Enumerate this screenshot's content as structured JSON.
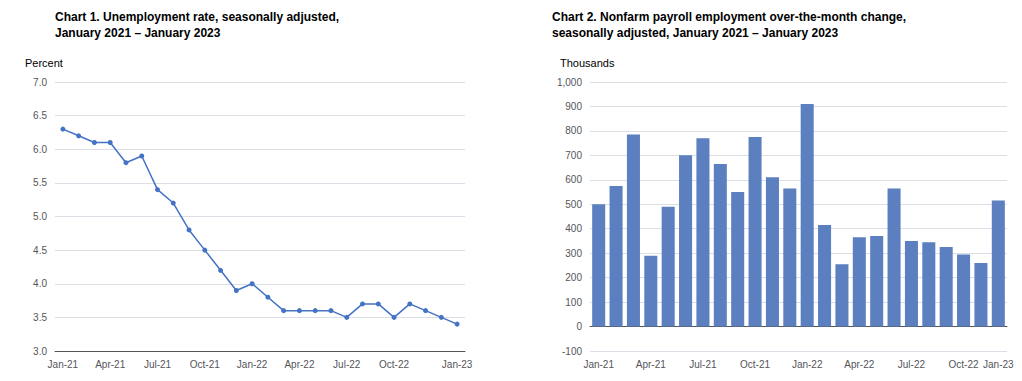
{
  "chart_data": [
    {
      "type": "line",
      "title": "Chart 1. Unemployment rate, seasonally adjusted,",
      "subtitle": "January 2021 – January 2023",
      "ylabel": "Percent",
      "categories": [
        "Jan-21",
        null,
        null,
        "Apr-21",
        null,
        null,
        "Jul-21",
        null,
        null,
        "Oct-21",
        null,
        null,
        "Jan-22",
        null,
        null,
        "Apr-22",
        null,
        null,
        "Jul-22",
        null,
        null,
        "Oct-22",
        null,
        null,
        null,
        "Jan-23"
      ],
      "values": [
        6.3,
        6.2,
        6.1,
        6.1,
        5.8,
        5.9,
        5.4,
        5.2,
        4.8,
        4.5,
        4.2,
        3.9,
        4.0,
        3.8,
        3.6,
        3.6,
        3.6,
        3.6,
        3.5,
        3.7,
        3.7,
        3.5,
        3.7,
        3.6,
        3.5,
        3.4
      ],
      "color": "#4472C4",
      "marker": "circle",
      "ylim": [
        3.0,
        7.0
      ],
      "yticks": [
        {
          "value": 3.0,
          "label": "3.0"
        },
        3.5,
        {
          "value": 4.0,
          "label": "4.0"
        },
        4.5,
        {
          "value": 5.0,
          "label": "5.0"
        },
        5.5,
        {
          "value": 6.0,
          "label": "6.0"
        },
        6.5,
        {
          "value": 7.0,
          "label": "7.0"
        }
      ],
      "grid": true
    },
    {
      "type": "bar",
      "title": "Chart 2. Nonfarm payroll employment over-the-month change,",
      "subtitle": "seasonally adjusted, January 2021 – January 2023",
      "ylabel": "Thousands",
      "categories": [
        "Jan-21",
        null,
        null,
        "Apr-21",
        null,
        null,
        "Jul-21",
        null,
        null,
        "Oct-21",
        null,
        null,
        "Jan-22",
        null,
        null,
        "Apr-22",
        null,
        null,
        "Jul-22",
        null,
        null,
        "Oct-22",
        null,
        "Jan-23"
      ],
      "values": [
        500,
        575,
        785,
        290,
        490,
        700,
        770,
        665,
        550,
        775,
        610,
        565,
        910,
        415,
        255,
        365,
        370,
        565,
        350,
        345,
        325,
        295,
        260,
        515
      ],
      "color": "#5B7FBF",
      "ylim": [
        -100,
        1000
      ],
      "yticks": [
        -100,
        0,
        100,
        200,
        300,
        400,
        500,
        600,
        700,
        800,
        900,
        {
          "value": 1000,
          "label": "1,000"
        }
      ],
      "grid": true
    }
  ]
}
